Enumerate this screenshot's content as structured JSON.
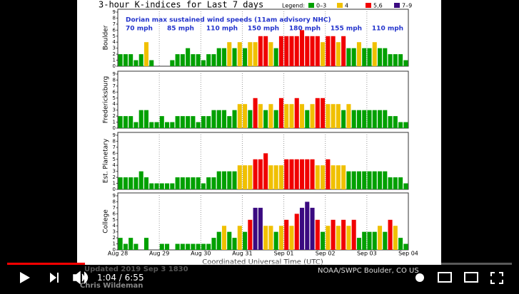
{
  "chart": {
    "title": "3-hour K-indices for Last 7 days",
    "legend_title": "Legend:",
    "legend": [
      {
        "label": "0–3",
        "color": "#00a000"
      },
      {
        "label": "4",
        "color": "#f0c000"
      },
      {
        "label": "5,6",
        "color": "#f00000"
      },
      {
        "label": "7–9",
        "color": "#3a0a80"
      }
    ],
    "annotation": "Dorian max sustained wind speeds (11am advisory NHC)",
    "speeds": [
      "70 mph",
      "85 mph",
      "110 mph",
      "150 mph",
      "180 mph",
      "155 mph",
      "110 mph"
    ],
    "ylim": [
      0,
      9
    ],
    "yticks": [
      0,
      1,
      2,
      3,
      4,
      5,
      6,
      7,
      8,
      9
    ],
    "panels": [
      {
        "name": "Boulder",
        "values": [
          2,
          2,
          2,
          1,
          2,
          4,
          1,
          0,
          0,
          0,
          1,
          2,
          2,
          3,
          2,
          2,
          1,
          2,
          2,
          3,
          3,
          4,
          3,
          4,
          3,
          4,
          4,
          5,
          5,
          4,
          3,
          5,
          5,
          5,
          5,
          6,
          5,
          5,
          5,
          4,
          5,
          5,
          4,
          5,
          3,
          3,
          4,
          3,
          3,
          4,
          3,
          3,
          2,
          2,
          2,
          1
        ]
      },
      {
        "name": "Fredericksburg",
        "values": [
          2,
          2,
          2,
          1,
          3,
          3,
          1,
          1,
          2,
          1,
          1,
          2,
          2,
          2,
          2,
          1,
          2,
          2,
          3,
          3,
          3,
          2,
          3,
          4,
          4,
          3,
          5,
          4,
          3,
          4,
          3,
          5,
          4,
          4,
          5,
          4,
          3,
          4,
          5,
          5,
          4,
          4,
          4,
          3,
          4,
          3,
          3,
          3,
          3,
          3,
          3,
          3,
          2,
          2,
          1,
          1
        ]
      },
      {
        "name": "Est. Planetary",
        "values": [
          2,
          2,
          2,
          2,
          3,
          2,
          1,
          1,
          1,
          1,
          1,
          2,
          2,
          2,
          2,
          2,
          1,
          2,
          2,
          3,
          3,
          3,
          3,
          4,
          4,
          4,
          5,
          5,
          6,
          4,
          4,
          4,
          5,
          5,
          5,
          5,
          5,
          5,
          4,
          4,
          5,
          4,
          4,
          4,
          3,
          3,
          3,
          3,
          3,
          3,
          3,
          3,
          2,
          2,
          2,
          1
        ]
      },
      {
        "name": "College",
        "values": [
          2,
          1,
          2,
          1,
          0,
          2,
          0,
          0,
          1,
          1,
          0,
          1,
          1,
          1,
          1,
          1,
          1,
          1,
          2,
          3,
          4,
          3,
          2,
          4,
          3,
          5,
          7,
          7,
          4,
          4,
          3,
          4,
          5,
          4,
          6,
          7,
          8,
          7,
          5,
          3,
          4,
          5,
          4,
          5,
          4,
          5,
          2,
          3,
          3,
          3,
          4,
          3,
          5,
          4,
          2,
          1
        ]
      }
    ],
    "x_labels": [
      "Aug 28",
      "Aug 29",
      "Aug 30",
      "Aug 31",
      "Sep 01",
      "Sep 02",
      "Sep 03",
      "Sep 04"
    ],
    "x_axis_label": "Coordinated Universal Time (UTC)",
    "footer_left": "Updated 2019 Sep  3 1830",
    "footer_right": "NOAA/SWPC Boulder, CO US"
  },
  "player": {
    "current": "1:04",
    "total": "6:55",
    "author": "Chris Wildeman"
  }
}
